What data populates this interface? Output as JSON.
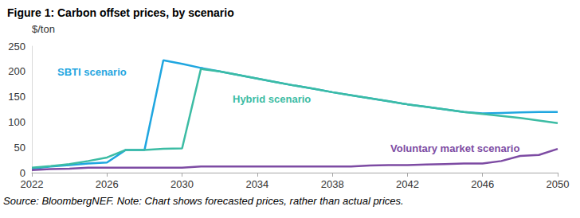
{
  "chart_data": {
    "type": "line",
    "title": "Figure 1: Carbon offset prices, by scenario",
    "y_label": "$/ton",
    "note": "Source: BloombergNEF. Note: Chart shows forecasted prices, rather than actual prices.",
    "x": [
      2022,
      2023,
      2024,
      2025,
      2026,
      2027,
      2028,
      2029,
      2030,
      2031,
      2032,
      2033,
      2034,
      2035,
      2036,
      2037,
      2038,
      2039,
      2040,
      2041,
      2042,
      2043,
      2044,
      2045,
      2046,
      2047,
      2048,
      2049,
      2050
    ],
    "series": [
      {
        "name": "SBTI scenario",
        "color": "#1fa6e0",
        "values": [
          8,
          12,
          15,
          18,
          20,
          45,
          45,
          222,
          215,
          207,
          200,
          193,
          186,
          179,
          172,
          166,
          159,
          153,
          147,
          141,
          135,
          130,
          125,
          120,
          117,
          118,
          119,
          120,
          120
        ]
      },
      {
        "name": "Hybrid scenario",
        "color": "#3cbca4",
        "values": [
          10,
          13,
          17,
          23,
          30,
          45,
          45,
          47,
          48,
          205,
          200,
          193,
          186,
          179,
          172,
          166,
          159,
          153,
          147,
          141,
          135,
          130,
          125,
          120,
          116,
          112,
          108,
          103,
          98
        ]
      },
      {
        "name": "Voluntary market scenario",
        "color": "#7d4ba3",
        "values": [
          5,
          7,
          8,
          10,
          10,
          10,
          10,
          10,
          10,
          12,
          12,
          12,
          12,
          12,
          12,
          12,
          12,
          12,
          14,
          15,
          15,
          16,
          17,
          18,
          18,
          23,
          33,
          35,
          47
        ]
      }
    ],
    "xlim": [
      2022,
      2050
    ],
    "xticks": [
      2022,
      2026,
      2030,
      2034,
      2038,
      2042,
      2046,
      2050
    ],
    "ylim": [
      0,
      250
    ],
    "yticks": [
      0,
      50,
      100,
      150,
      200,
      250
    ],
    "grid": false
  }
}
